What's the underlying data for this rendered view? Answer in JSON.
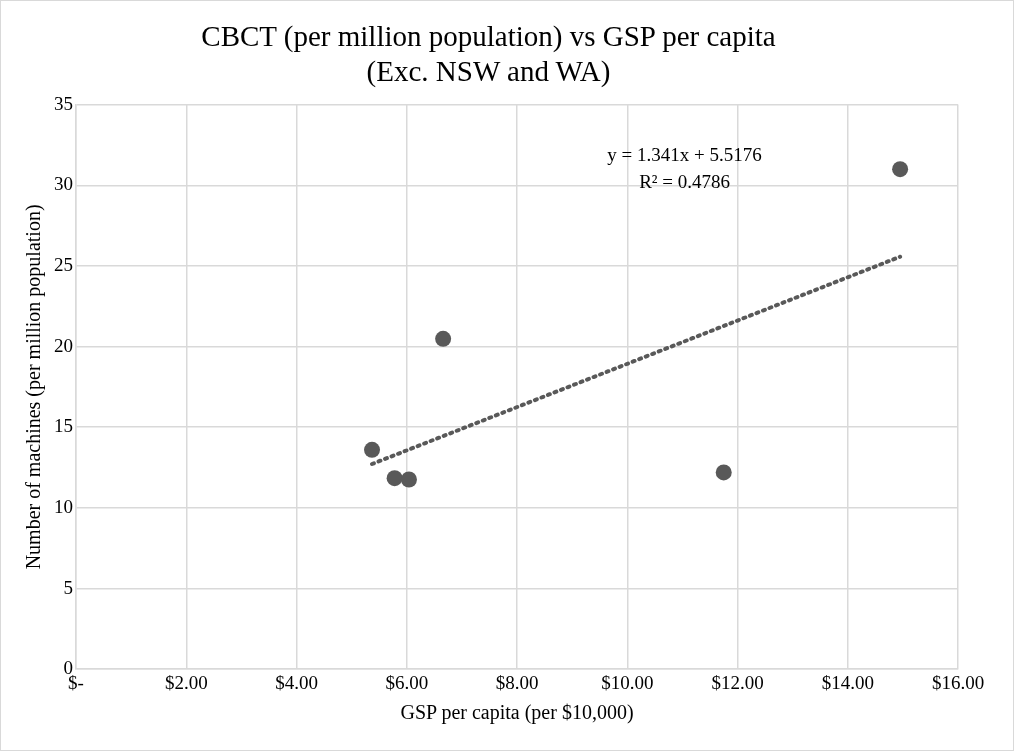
{
  "chart_data": {
    "type": "scatter",
    "title": "CBCT (per million population) vs GSP per capita\n(Exc. NSW and WA)",
    "xlabel": "GSP per capita (per $10,000)",
    "ylabel": "Number of machines (per million population)",
    "xlim": [
      0,
      16
    ],
    "xticks": [
      {
        "value": 0,
        "label": "$-"
      },
      {
        "value": 2,
        "label": "$2.00"
      },
      {
        "value": 4,
        "label": "$4.00"
      },
      {
        "value": 6,
        "label": "$6.00"
      },
      {
        "value": 8,
        "label": "$8.00"
      },
      {
        "value": 10,
        "label": "$10.00"
      },
      {
        "value": 12,
        "label": "$12.00"
      },
      {
        "value": 14,
        "label": "$14.00"
      },
      {
        "value": 16,
        "label": "$16.00"
      }
    ],
    "ylim": [
      0,
      35
    ],
    "yticks": [
      0,
      5,
      10,
      15,
      20,
      25,
      30,
      35
    ],
    "grid": true,
    "legend": false,
    "annotations": [
      "y = 1.341x + 5.5176",
      "R² = 0.4786"
    ],
    "series": [
      {
        "type": "scatter",
        "color": "#595959",
        "marker": "circle",
        "x": [
          5.37,
          5.78,
          6.04,
          6.66,
          11.75,
          14.95
        ],
        "values": [
          13.6,
          11.84,
          11.76,
          20.48,
          12.2,
          31.0
        ]
      },
      {
        "type": "line",
        "color": "#595959",
        "marker": "none",
        "line_style": "dotted",
        "x": [
          5.37,
          14.95
        ],
        "values": [
          12.72,
          25.57
        ]
      }
    ]
  }
}
